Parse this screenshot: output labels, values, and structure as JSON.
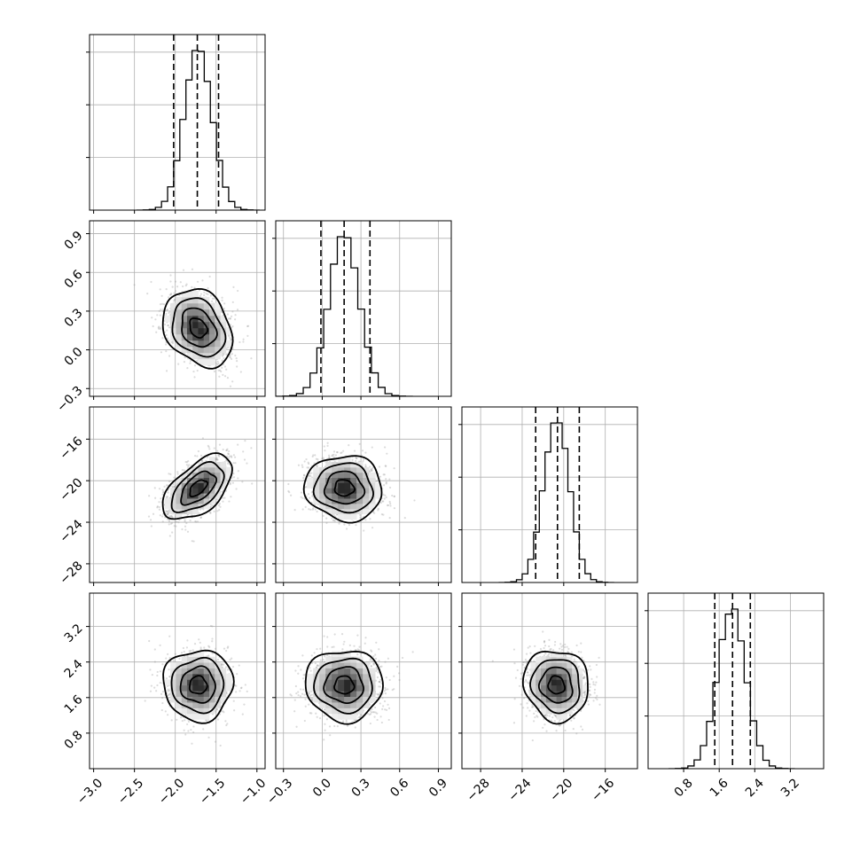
{
  "chart_data": {
    "type": "corner",
    "title": "",
    "parameters": [
      {
        "axis_range": [
          -3.05,
          -0.9
        ],
        "ticks": [
          -3.0,
          -2.5,
          -2.0,
          -1.5,
          -1.0
        ],
        "tick_labels": [
          "−3.0",
          "−2.5",
          "−2.0",
          "−1.5",
          "−1.0"
        ],
        "mean": -1.72,
        "sd": 0.17,
        "quantiles": [
          -2.02,
          -1.73,
          -1.47
        ]
      },
      {
        "axis_range": [
          -0.36,
          1.0
        ],
        "ticks": [
          -0.3,
          0.0,
          0.3,
          0.6,
          0.9
        ],
        "tick_labels": [
          "−0.3",
          "0.0",
          "0.3",
          "0.6",
          "0.9"
        ],
        "mean": 0.17,
        "sd": 0.12,
        "quantiles": [
          -0.01,
          0.17,
          0.37
        ]
      },
      {
        "axis_range": [
          -29.8,
          -12.9
        ],
        "ticks": [
          -28,
          -24,
          -20,
          -16
        ],
        "tick_labels": [
          "−28",
          "−24",
          "−20",
          "−16"
        ],
        "mean": -20.7,
        "sd": 1.25,
        "quantiles": [
          -22.7,
          -20.6,
          -18.5
        ]
      },
      {
        "axis_range": [
          0.0,
          3.95
        ],
        "ticks": [
          0.8,
          1.6,
          2.4,
          3.2
        ],
        "tick_labels": [
          "0.8",
          "1.6",
          "2.4",
          "3.2"
        ],
        "mean": 1.88,
        "sd": 0.32,
        "quantiles": [
          1.5,
          1.9,
          2.3
        ]
      }
    ],
    "correlations": [
      {
        "x": 0,
        "y": 1,
        "rho": -0.25
      },
      {
        "x": 0,
        "y": 2,
        "rho": 0.55
      },
      {
        "x": 1,
        "y": 2,
        "rho": -0.05
      },
      {
        "x": 0,
        "y": 3,
        "rho": 0.0
      },
      {
        "x": 1,
        "y": 3,
        "rho": -0.02
      },
      {
        "x": 2,
        "y": 3,
        "rho": -0.08
      }
    ],
    "contour_levels_sigma": [
      0.5,
      1.0,
      1.5,
      2.0
    ],
    "grid": true,
    "legend": "none"
  }
}
